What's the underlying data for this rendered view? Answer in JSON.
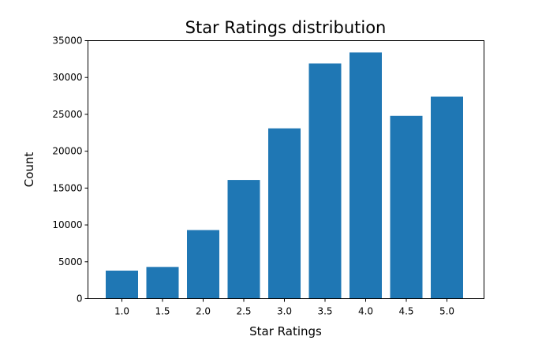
{
  "chart_data": {
    "type": "bar",
    "title": "Star Ratings distribution",
    "xlabel": "Star Ratings",
    "ylabel": "Count",
    "categories": [
      "1.0",
      "1.5",
      "2.0",
      "2.5",
      "3.0",
      "3.5",
      "4.0",
      "4.5",
      "5.0"
    ],
    "values": [
      3800,
      4300,
      9300,
      16100,
      23100,
      31900,
      33400,
      24800,
      27400
    ],
    "yticks": [
      "0",
      "5000",
      "10000",
      "15000",
      "20000",
      "25000",
      "30000",
      "35000"
    ],
    "ylim": [
      0,
      35000
    ],
    "grid": false,
    "bar_color": "#1f77b4"
  }
}
